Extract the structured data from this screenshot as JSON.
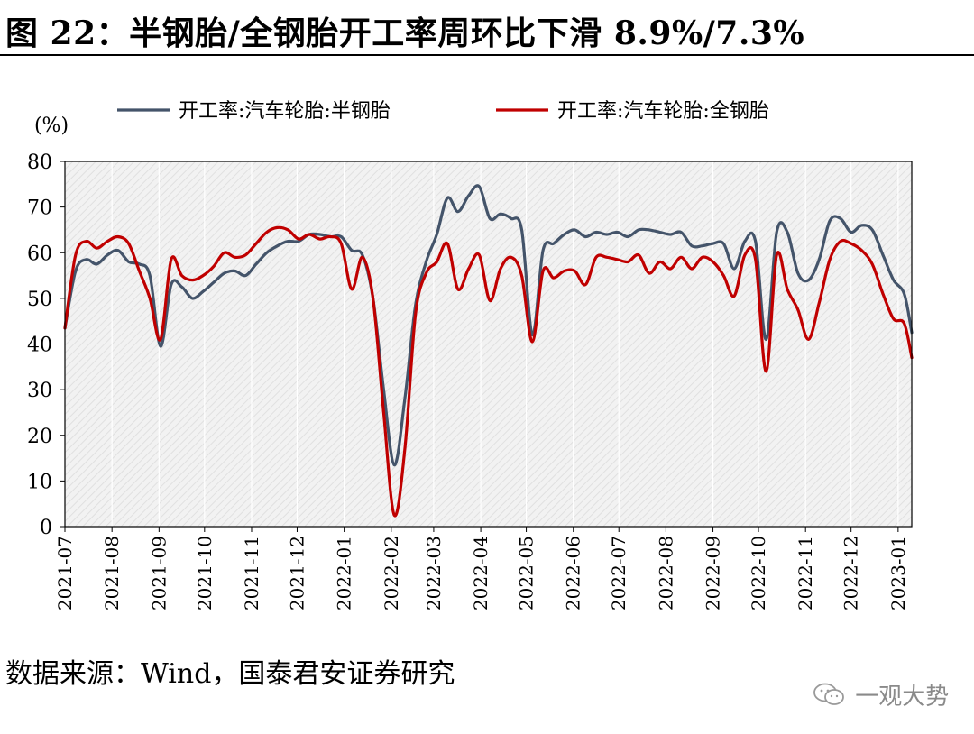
{
  "title": "图 22：半钢胎/全钢胎开工率周环比下滑 8.9%/7.3%",
  "source": "数据来源：Wind，国泰君安证券研究",
  "watermark": "一观大势",
  "chart_data": {
    "type": "line",
    "ylabel": "(%)",
    "ylim": [
      0,
      80
    ],
    "yticks": [
      0,
      10,
      20,
      30,
      40,
      50,
      60,
      70,
      80
    ],
    "xlim": [
      "2021-07-01",
      "2023-01-10"
    ],
    "xtick_labels": [
      "2021-07",
      "2021-08",
      "2021-09",
      "2021-10",
      "2021-11",
      "2021-12",
      "2022-01",
      "2022-02",
      "2022-03",
      "2022-04",
      "2022-05",
      "2022-06",
      "2022-07",
      "2022-08",
      "2022-09",
      "2022-10",
      "2022-11",
      "2022-12",
      "2023-01"
    ],
    "grid": "vertical",
    "legend_position": "top",
    "series": [
      {
        "name": "开工率:汽车轮胎:半钢胎",
        "color": "#44546a",
        "points": [
          [
            "2021-07-01",
            43.5
          ],
          [
            "2021-07-08",
            56
          ],
          [
            "2021-07-15",
            58.5
          ],
          [
            "2021-07-22",
            57.5
          ],
          [
            "2021-07-29",
            59.5
          ],
          [
            "2021-08-05",
            60.5
          ],
          [
            "2021-08-12",
            58
          ],
          [
            "2021-08-19",
            57.5
          ],
          [
            "2021-08-26",
            55
          ],
          [
            "2021-09-02",
            39.5
          ],
          [
            "2021-09-09",
            53
          ],
          [
            "2021-09-16",
            52.5
          ],
          [
            "2021-09-23",
            50
          ],
          [
            "2021-09-30",
            51.5
          ],
          [
            "2021-10-07",
            53.5
          ],
          [
            "2021-10-14",
            55.5
          ],
          [
            "2021-10-21",
            56
          ],
          [
            "2021-10-28",
            55
          ],
          [
            "2021-11-04",
            57.5
          ],
          [
            "2021-11-11",
            60
          ],
          [
            "2021-11-18",
            61.5
          ],
          [
            "2021-11-25",
            62.5
          ],
          [
            "2021-12-02",
            62.5
          ],
          [
            "2021-12-09",
            64
          ],
          [
            "2021-12-16",
            64
          ],
          [
            "2021-12-23",
            63.5
          ],
          [
            "2021-12-30",
            63.5
          ],
          [
            "2022-01-06",
            60.5
          ],
          [
            "2022-01-13",
            59.5
          ],
          [
            "2022-01-20",
            50
          ],
          [
            "2022-01-27",
            30
          ],
          [
            "2022-02-03",
            13.5
          ],
          [
            "2022-02-10",
            28
          ],
          [
            "2022-02-17",
            48.5
          ],
          [
            "2022-02-24",
            58
          ],
          [
            "2022-03-03",
            64
          ],
          [
            "2022-03-10",
            72
          ],
          [
            "2022-03-17",
            69
          ],
          [
            "2022-03-24",
            72.5
          ],
          [
            "2022-03-31",
            74.5
          ],
          [
            "2022-04-07",
            67.5
          ],
          [
            "2022-04-14",
            68.5
          ],
          [
            "2022-04-21",
            67.5
          ],
          [
            "2022-04-28",
            65
          ],
          [
            "2022-05-05",
            42
          ],
          [
            "2022-05-12",
            60.5
          ],
          [
            "2022-05-19",
            62
          ],
          [
            "2022-05-26",
            64
          ],
          [
            "2022-06-02",
            65
          ],
          [
            "2022-06-09",
            63.5
          ],
          [
            "2022-06-16",
            64.5
          ],
          [
            "2022-06-23",
            64
          ],
          [
            "2022-06-30",
            64.5
          ],
          [
            "2022-07-07",
            63.5
          ],
          [
            "2022-07-14",
            65
          ],
          [
            "2022-07-21",
            65
          ],
          [
            "2022-07-28",
            64.5
          ],
          [
            "2022-08-04",
            64
          ],
          [
            "2022-08-11",
            64.5
          ],
          [
            "2022-08-18",
            61.5
          ],
          [
            "2022-08-25",
            61.5
          ],
          [
            "2022-09-01",
            62
          ],
          [
            "2022-09-08",
            62
          ],
          [
            "2022-09-15",
            56.5
          ],
          [
            "2022-09-22",
            62.5
          ],
          [
            "2022-09-29",
            62.5
          ],
          [
            "2022-10-06",
            41
          ],
          [
            "2022-10-13",
            64.5
          ],
          [
            "2022-10-20",
            64.5
          ],
          [
            "2022-10-27",
            55.5
          ],
          [
            "2022-11-03",
            54
          ],
          [
            "2022-11-10",
            58.5
          ],
          [
            "2022-11-17",
            67
          ],
          [
            "2022-11-24",
            67.5
          ],
          [
            "2022-12-01",
            64.5
          ],
          [
            "2022-12-08",
            66
          ],
          [
            "2022-12-15",
            65
          ],
          [
            "2022-12-22",
            59.5
          ],
          [
            "2022-12-29",
            54
          ],
          [
            "2023-01-05",
            51
          ],
          [
            "2023-01-10",
            42.5
          ]
        ]
      },
      {
        "name": "开工率:汽车轮胎:全钢胎",
        "color": "#c00000",
        "points": [
          [
            "2021-07-01",
            43.5
          ],
          [
            "2021-07-08",
            59.5
          ],
          [
            "2021-07-15",
            62.5
          ],
          [
            "2021-07-22",
            61
          ],
          [
            "2021-07-29",
            62.5
          ],
          [
            "2021-08-05",
            63.5
          ],
          [
            "2021-08-12",
            62
          ],
          [
            "2021-08-19",
            56
          ],
          [
            "2021-08-26",
            50
          ],
          [
            "2021-09-02",
            41
          ],
          [
            "2021-09-09",
            58.5
          ],
          [
            "2021-09-16",
            55
          ],
          [
            "2021-09-23",
            54
          ],
          [
            "2021-09-30",
            55
          ],
          [
            "2021-10-07",
            57
          ],
          [
            "2021-10-14",
            60
          ],
          [
            "2021-10-21",
            59
          ],
          [
            "2021-10-28",
            59.5
          ],
          [
            "2021-11-04",
            62
          ],
          [
            "2021-11-11",
            64.5
          ],
          [
            "2021-11-18",
            65.5
          ],
          [
            "2021-11-25",
            65
          ],
          [
            "2021-12-02",
            63
          ],
          [
            "2021-12-09",
            64
          ],
          [
            "2021-12-16",
            63
          ],
          [
            "2021-12-23",
            63.5
          ],
          [
            "2021-12-30",
            62
          ],
          [
            "2022-01-06",
            52
          ],
          [
            "2022-01-13",
            59
          ],
          [
            "2022-01-20",
            50
          ],
          [
            "2022-01-27",
            25
          ],
          [
            "2022-02-03",
            2.5
          ],
          [
            "2022-02-10",
            17
          ],
          [
            "2022-02-17",
            46.5
          ],
          [
            "2022-02-24",
            55.5
          ],
          [
            "2022-03-03",
            58
          ],
          [
            "2022-03-10",
            62
          ],
          [
            "2022-03-17",
            52
          ],
          [
            "2022-03-24",
            56.5
          ],
          [
            "2022-03-31",
            59.5
          ],
          [
            "2022-04-07",
            49.5
          ],
          [
            "2022-04-14",
            56.5
          ],
          [
            "2022-04-21",
            59
          ],
          [
            "2022-04-28",
            55
          ],
          [
            "2022-05-05",
            40.5
          ],
          [
            "2022-05-12",
            56
          ],
          [
            "2022-05-19",
            54.5
          ],
          [
            "2022-05-26",
            56
          ],
          [
            "2022-06-02",
            56
          ],
          [
            "2022-06-09",
            53
          ],
          [
            "2022-06-16",
            59
          ],
          [
            "2022-06-23",
            59
          ],
          [
            "2022-06-30",
            58.5
          ],
          [
            "2022-07-07",
            58
          ],
          [
            "2022-07-14",
            59.5
          ],
          [
            "2022-07-21",
            55.5
          ],
          [
            "2022-07-28",
            58
          ],
          [
            "2022-08-04",
            56.5
          ],
          [
            "2022-08-11",
            59
          ],
          [
            "2022-08-18",
            56.5
          ],
          [
            "2022-08-25",
            59
          ],
          [
            "2022-09-01",
            58
          ],
          [
            "2022-09-08",
            55
          ],
          [
            "2022-09-15",
            50.5
          ],
          [
            "2022-09-22",
            59.5
          ],
          [
            "2022-09-29",
            58.5
          ],
          [
            "2022-10-06",
            34
          ],
          [
            "2022-10-13",
            59.5
          ],
          [
            "2022-10-20",
            52
          ],
          [
            "2022-10-27",
            47.5
          ],
          [
            "2022-11-03",
            41
          ],
          [
            "2022-11-10",
            49
          ],
          [
            "2022-11-17",
            58.5
          ],
          [
            "2022-11-24",
            62.5
          ],
          [
            "2022-12-01",
            62
          ],
          [
            "2022-12-08",
            60.5
          ],
          [
            "2022-12-15",
            57.5
          ],
          [
            "2022-12-22",
            51
          ],
          [
            "2022-12-29",
            45.5
          ],
          [
            "2023-01-05",
            44.5
          ],
          [
            "2023-01-10",
            37
          ]
        ]
      }
    ]
  }
}
